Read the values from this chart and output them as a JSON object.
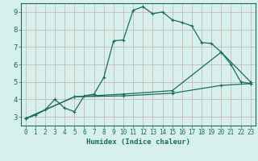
{
  "xlabel": "Humidex (Indice chaleur)",
  "bg_color": "#d8f0ec",
  "line_color": "#1a6b60",
  "grid_color": "#c8b8b8",
  "xlim": [
    -0.5,
    23.5
  ],
  "ylim": [
    2.5,
    9.5
  ],
  "xticks": [
    0,
    1,
    2,
    3,
    4,
    5,
    6,
    7,
    8,
    9,
    10,
    11,
    12,
    13,
    14,
    15,
    16,
    17,
    18,
    19,
    20,
    21,
    22,
    23
  ],
  "yticks": [
    3,
    4,
    5,
    6,
    7,
    8,
    9
  ],
  "line1_x": [
    0,
    1,
    2,
    3,
    4,
    5,
    6,
    7,
    8,
    9,
    10,
    11,
    12,
    13,
    14,
    15,
    16,
    17,
    18,
    19,
    20,
    21,
    22,
    23
  ],
  "line1_y": [
    2.9,
    3.1,
    3.4,
    4.0,
    3.5,
    3.3,
    4.2,
    4.3,
    5.25,
    7.35,
    7.4,
    9.1,
    9.3,
    8.9,
    9.0,
    8.55,
    8.4,
    8.2,
    7.25,
    7.2,
    6.7,
    6.0,
    5.0,
    4.9
  ],
  "line2_x": [
    0,
    5,
    10,
    15,
    20,
    23
  ],
  "line2_y": [
    2.9,
    4.15,
    4.3,
    4.5,
    6.7,
    5.0
  ],
  "line3_x": [
    0,
    5,
    10,
    15,
    20,
    23
  ],
  "line3_y": [
    2.9,
    4.15,
    4.2,
    4.35,
    4.8,
    4.9
  ],
  "xlabel_fontsize": 6.5,
  "tick_fontsize": 5.5,
  "ytick_fontsize": 6.5
}
